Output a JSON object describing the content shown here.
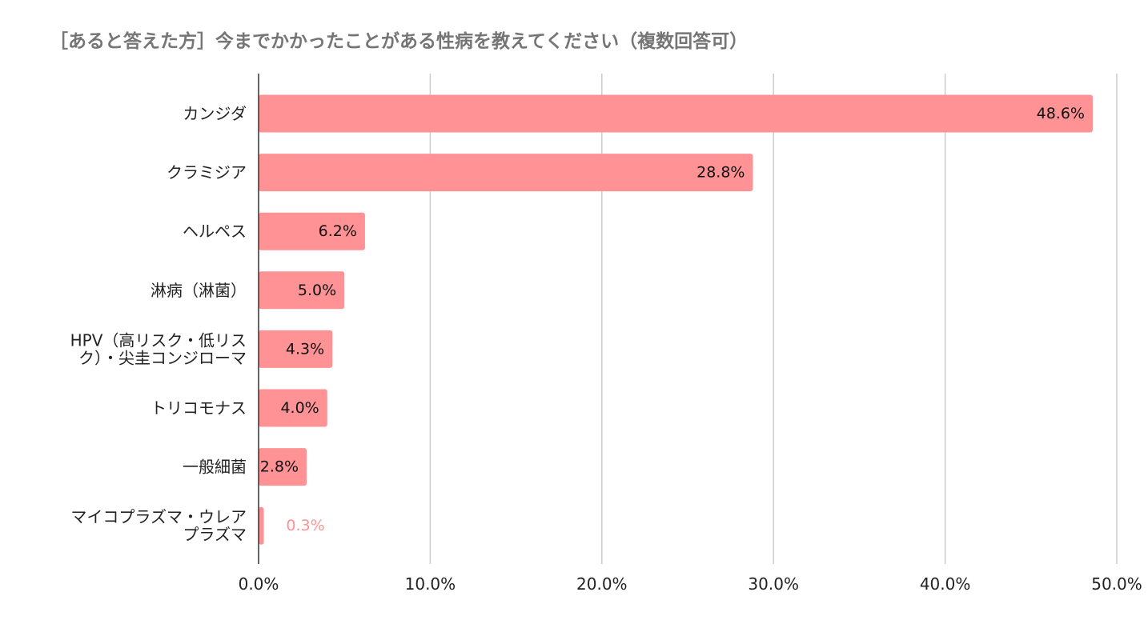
{
  "chart_data": {
    "type": "bar",
    "orientation": "horizontal",
    "title": "［あると答えた方］今までかかったことがある性病を教えてください（複数回答可）",
    "categories": [
      [
        "カンジダ"
      ],
      [
        "クラミジア"
      ],
      [
        "ヘルペス"
      ],
      [
        "淋病（淋菌）"
      ],
      [
        "HPV（高リスク・低リス",
        "ク）・尖圭コンジローマ"
      ],
      [
        "トリコモナス"
      ],
      [
        "一般細菌"
      ],
      [
        "マイコプラズマ・ウレア",
        "プラズマ"
      ]
    ],
    "values": [
      48.6,
      28.8,
      6.2,
      5.0,
      4.3,
      4.0,
      2.8,
      0.3
    ],
    "data_labels": [
      "48.6%",
      "28.8%",
      "6.2%",
      "5.0%",
      "4.3%",
      "4.0%",
      "2.8%",
      "0.3%"
    ],
    "xlim": [
      0,
      50
    ],
    "x_ticks": [
      0,
      10,
      20,
      30,
      40,
      50
    ],
    "x_tick_labels": [
      "0.0%",
      "10.0%",
      "20.0%",
      "30.0%",
      "40.0%",
      "50.0%"
    ],
    "grid": "vertical",
    "legend": "none",
    "bar_color": "#ff9294",
    "xlabel": "",
    "ylabel": ""
  }
}
